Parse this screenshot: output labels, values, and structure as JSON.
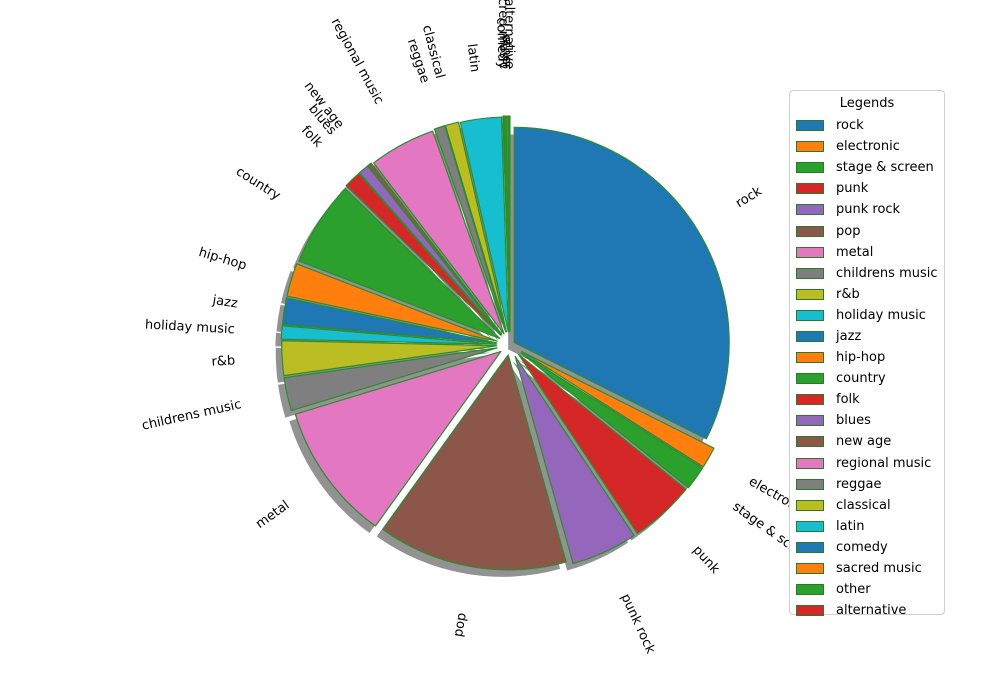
{
  "chart_data": {
    "type": "pie",
    "legend_title": "Legends",
    "legend_position": "right",
    "shadow": true,
    "edge_color": "#2e8b2e",
    "slices": [
      {
        "label": "rock",
        "value": 32.5,
        "color": "#1f77b4"
      },
      {
        "label": "electronic",
        "value": 1.6,
        "color": "#ff7f0e"
      },
      {
        "label": "stage & screen",
        "value": 1.8,
        "color": "#2ca02c"
      },
      {
        "label": "punk",
        "value": 4.9,
        "color": "#d62728"
      },
      {
        "label": "punk rock",
        "value": 5.0,
        "color": "#9467bd"
      },
      {
        "label": "pop",
        "value": 14.3,
        "color": "#8c564b"
      },
      {
        "label": "metal",
        "value": 10.4,
        "color": "#e377c2"
      },
      {
        "label": "childrens music",
        "value": 2.5,
        "color": "#7f7f7f"
      },
      {
        "label": "r&b",
        "value": 2.6,
        "color": "#bcbd22"
      },
      {
        "label": "holiday music",
        "value": 1.0,
        "color": "#17becf"
      },
      {
        "label": "jazz",
        "value": 2.0,
        "color": "#1f77b4"
      },
      {
        "label": "hip-hop",
        "value": 2.5,
        "color": "#ff7f0e"
      },
      {
        "label": "country",
        "value": 6.4,
        "color": "#2ca02c"
      },
      {
        "label": "folk",
        "value": 1.3,
        "color": "#d62728"
      },
      {
        "label": "blues",
        "value": 0.8,
        "color": "#9467bd"
      },
      {
        "label": "new age",
        "value": 0.3,
        "color": "#8c564b"
      },
      {
        "label": "regional music",
        "value": 5.0,
        "color": "#e377c2"
      },
      {
        "label": "reggae",
        "value": 0.8,
        "color": "#7f7f7f"
      },
      {
        "label": "classical",
        "value": 1.0,
        "color": "#bcbd22"
      },
      {
        "label": "latin",
        "value": 3.1,
        "color": "#17becf"
      },
      {
        "label": "comedy",
        "value": 0.1,
        "color": "#1f77b4"
      },
      {
        "label": "sacred music",
        "value": 0.1,
        "color": "#ff7f0e"
      },
      {
        "label": "other",
        "value": 0.2,
        "color": "#2ca02c"
      },
      {
        "label": "alternative",
        "value": 0.1,
        "color": "#d62728"
      }
    ]
  }
}
